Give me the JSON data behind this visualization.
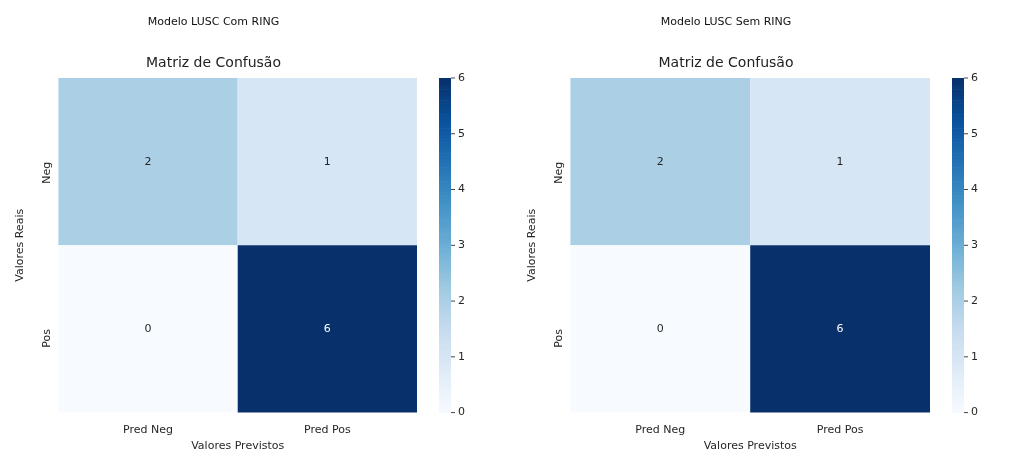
{
  "chart_data": [
    {
      "type": "heatmap",
      "title": "Modelo LUSC Com RING",
      "subtitle": "Matriz de Confusão",
      "xlabel": "Valores Previstos",
      "ylabel": "Valores Reais",
      "categories": [
        "Pred Neg",
        "Pred Pos"
      ],
      "y_categories": [
        "Neg",
        "Pos"
      ],
      "cells": [
        [
          2,
          1
        ],
        [
          0,
          6
        ]
      ],
      "data_labels": true,
      "clim": [
        0,
        6
      ],
      "cticks": [
        0,
        1,
        2,
        3,
        4,
        5,
        6
      ]
    },
    {
      "type": "heatmap",
      "title": "Modelo LUSC Sem RING",
      "subtitle": "Matriz de Confusão",
      "xlabel": "Valores Previstos",
      "ylabel": "Valores Reais",
      "categories": [
        "Pred Neg",
        "Pred Pos"
      ],
      "y_categories": [
        "Neg",
        "Pos"
      ],
      "cells": [
        [
          2,
          1
        ],
        [
          0,
          6
        ]
      ],
      "data_labels": true,
      "clim": [
        0,
        6
      ],
      "cticks": [
        0,
        1,
        2,
        3,
        4,
        5,
        6
      ]
    }
  ]
}
